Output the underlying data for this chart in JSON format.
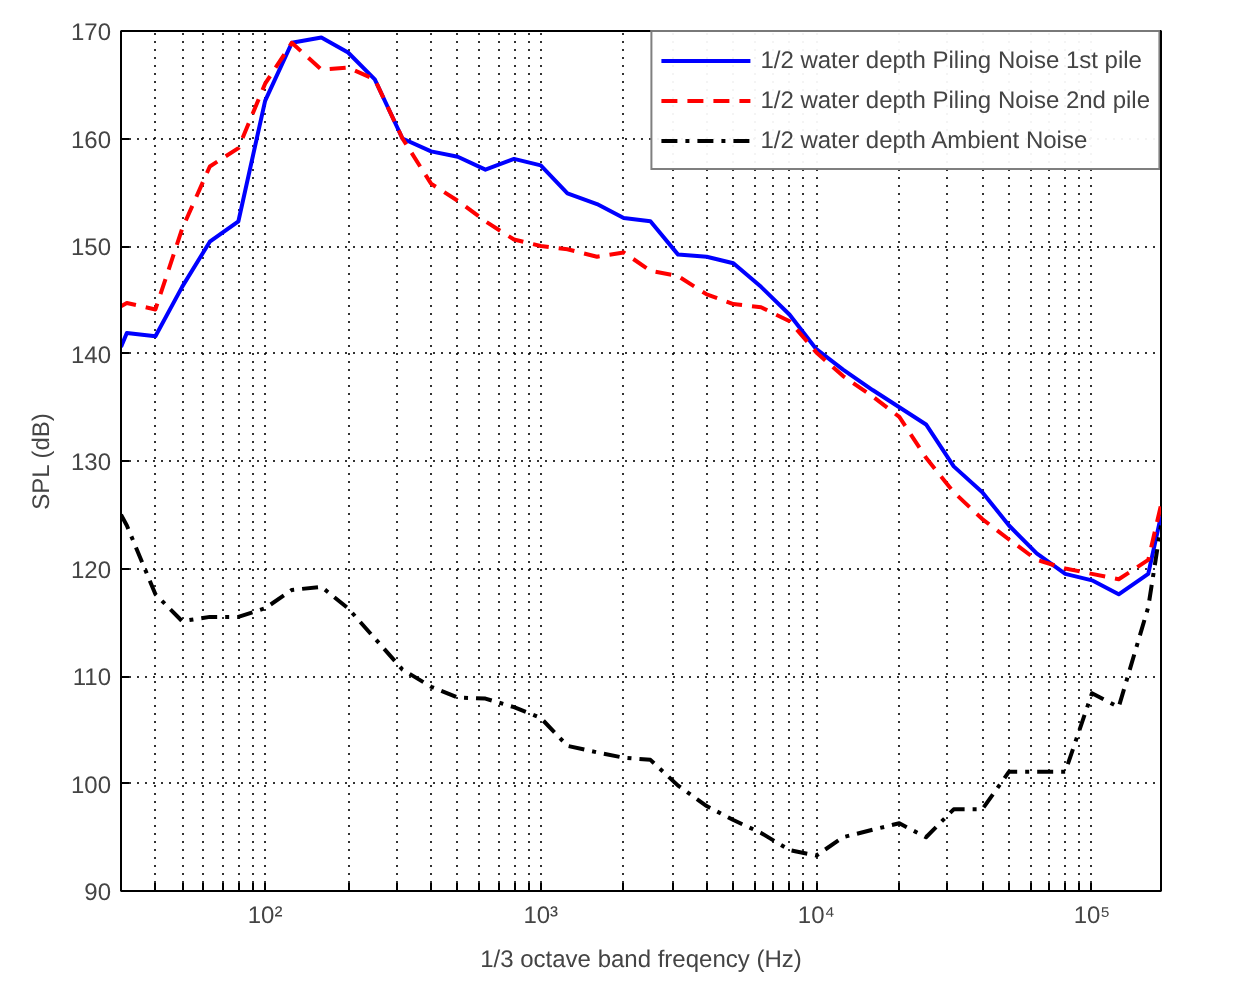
{
  "chart_data": {
    "type": "line",
    "xlabel": "1/3 octave band freqency (Hz)",
    "ylabel": "SPL (dB)",
    "log": "x",
    "xlim": [
      30,
      178000
    ],
    "ylim": [
      90,
      170
    ],
    "xticks": [
      {
        "value": 40,
        "label": null
      },
      {
        "value": 50,
        "label": null
      },
      {
        "value": 60,
        "label": null
      },
      {
        "value": 70,
        "label": null
      },
      {
        "value": 80,
        "label": null
      },
      {
        "value": 90,
        "label": null
      },
      {
        "value": 100,
        "label": "10²"
      },
      {
        "value": 200,
        "label": null
      },
      {
        "value": 300,
        "label": null
      },
      {
        "value": 400,
        "label": null
      },
      {
        "value": 500,
        "label": null
      },
      {
        "value": 600,
        "label": null
      },
      {
        "value": 700,
        "label": null
      },
      {
        "value": 800,
        "label": null
      },
      {
        "value": 900,
        "label": null
      },
      {
        "value": 1000,
        "label": "10³"
      },
      {
        "value": 2000,
        "label": null
      },
      {
        "value": 3000,
        "label": null
      },
      {
        "value": 4000,
        "label": null
      },
      {
        "value": 5000,
        "label": null
      },
      {
        "value": 6000,
        "label": null
      },
      {
        "value": 7000,
        "label": null
      },
      {
        "value": 8000,
        "label": null
      },
      {
        "value": 9000,
        "label": null
      },
      {
        "value": 10000,
        "label": "10⁴"
      },
      {
        "value": 20000,
        "label": null
      },
      {
        "value": 30000,
        "label": null
      },
      {
        "value": 40000,
        "label": null
      },
      {
        "value": 50000,
        "label": null
      },
      {
        "value": 60000,
        "label": null
      },
      {
        "value": 70000,
        "label": null
      },
      {
        "value": 80000,
        "label": null
      },
      {
        "value": 90000,
        "label": null
      },
      {
        "value": 100000,
        "label": "10⁵"
      }
    ],
    "yticks": [
      90,
      100,
      110,
      120,
      130,
      140,
      150,
      160,
      170
    ],
    "x": [
      30,
      31.5,
      40,
      50,
      63,
      80,
      100,
      125,
      160,
      200,
      250,
      315,
      400,
      500,
      630,
      800,
      1000,
      1250,
      1600,
      2000,
      2500,
      3150,
      4000,
      5000,
      6300,
      8000,
      10000,
      12500,
      16000,
      20000,
      25000,
      31500,
      40000,
      50000,
      63000,
      80000,
      100000,
      125000,
      160000,
      178000
    ],
    "series": [
      {
        "name": "1/2 water depth Piling Noise 1st pile",
        "color": "#0000ff",
        "line_style": "solid",
        "values": [
          140.6,
          141.9,
          141.6,
          146.2,
          150.4,
          152.3,
          163.5,
          168.9,
          169.4,
          168,
          165.5,
          160,
          158.8,
          158.3,
          157.1,
          158.1,
          157.5,
          154.9,
          153.9,
          152.6,
          152.3,
          149.2,
          149,
          148.4,
          146.2,
          143.6,
          140.4,
          138.5,
          136.6,
          135,
          133.4,
          129.5,
          127.1,
          124,
          121.4,
          119.5,
          118.9,
          117.6,
          119.5,
          124.9
        ]
      },
      {
        "name": "1/2 water depth Piling Noise 2nd pile",
        "color": "#ff0000",
        "line_style": "dashed",
        "values": [
          144.4,
          144.7,
          144.1,
          151.6,
          157.4,
          159.1,
          165.1,
          168.9,
          166.4,
          166.6,
          165.5,
          160,
          155.8,
          154.2,
          152.3,
          150.6,
          150,
          149.7,
          149,
          149.4,
          147.7,
          147.2,
          145.5,
          144.6,
          144.3,
          143,
          140.1,
          137.9,
          136,
          134.1,
          130.3,
          127.1,
          124.6,
          122.7,
          120.8,
          120,
          119.5,
          119,
          120.8,
          125.9
        ]
      },
      {
        "name": "1/2 water depth Ambient Noise",
        "color": "#000000",
        "line_style": "dashdot",
        "values": [
          125,
          124,
          117.6,
          115.1,
          115.5,
          115.5,
          116.3,
          118,
          118.3,
          116.3,
          113.5,
          110.6,
          109,
          108,
          107.9,
          107.1,
          106.1,
          103.5,
          102.9,
          102.4,
          102.2,
          99.8,
          97.9,
          96.6,
          95.4,
          93.8,
          93.3,
          95,
          95.7,
          96.3,
          95,
          97.6,
          97.6,
          101.1,
          101.1,
          101.1,
          108.4,
          107.1,
          116.4,
          124
        ]
      }
    ],
    "grid": true,
    "legend": "top right"
  }
}
